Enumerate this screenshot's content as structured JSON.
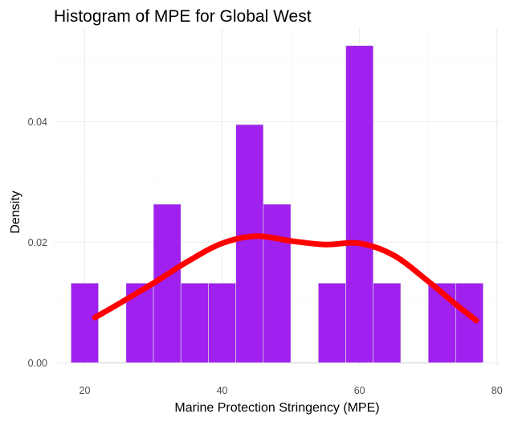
{
  "chart_data": {
    "type": "bar",
    "title": "Histogram of MPE for Global West",
    "xlabel": "Marine Protection Stringency (MPE)",
    "ylabel": "Density",
    "xlim": [
      15.5,
      80.5
    ],
    "ylim": [
      -0.0005,
      0.0555
    ],
    "x_ticks": [
      20,
      40,
      60,
      80
    ],
    "x_tick_labels": [
      "20",
      "40",
      "60",
      "80"
    ],
    "y_ticks": [
      0,
      0.02,
      0.04
    ],
    "y_tick_labels": [
      "0.00",
      "0.02",
      "0.04"
    ],
    "grid": true,
    "legend": "none",
    "bin_width": 4,
    "bins": [
      {
        "start": 18,
        "end": 22,
        "density": 0.0132
      },
      {
        "start": 22,
        "end": 26,
        "density": 0
      },
      {
        "start": 26,
        "end": 30,
        "density": 0.0132
      },
      {
        "start": 30,
        "end": 34,
        "density": 0.0263
      },
      {
        "start": 34,
        "end": 38,
        "density": 0.0132
      },
      {
        "start": 38,
        "end": 42,
        "density": 0.0132
      },
      {
        "start": 42,
        "end": 46,
        "density": 0.0395
      },
      {
        "start": 46,
        "end": 50,
        "density": 0.0263
      },
      {
        "start": 50,
        "end": 54,
        "density": 0
      },
      {
        "start": 54,
        "end": 58,
        "density": 0.0132
      },
      {
        "start": 58,
        "end": 62,
        "density": 0.0526
      },
      {
        "start": 62,
        "end": 66,
        "density": 0.0132
      },
      {
        "start": 66,
        "end": 70,
        "density": 0
      },
      {
        "start": 70,
        "end": 74,
        "density": 0.0132
      },
      {
        "start": 74,
        "end": 78,
        "density": 0.0132
      }
    ],
    "density_curve": {
      "x": [
        21.5,
        25,
        30,
        35,
        40,
        45,
        50,
        55,
        60,
        65,
        70,
        74,
        77
      ],
      "y": [
        0.0075,
        0.0098,
        0.0132,
        0.0168,
        0.0198,
        0.021,
        0.0202,
        0.0196,
        0.0198,
        0.0178,
        0.0135,
        0.0097,
        0.007
      ]
    },
    "colors": {
      "bar_fill": "#a020f0",
      "bar_outline": "#d9d9d9",
      "curve": "#ff0000",
      "grid": "#ebebeb"
    }
  }
}
